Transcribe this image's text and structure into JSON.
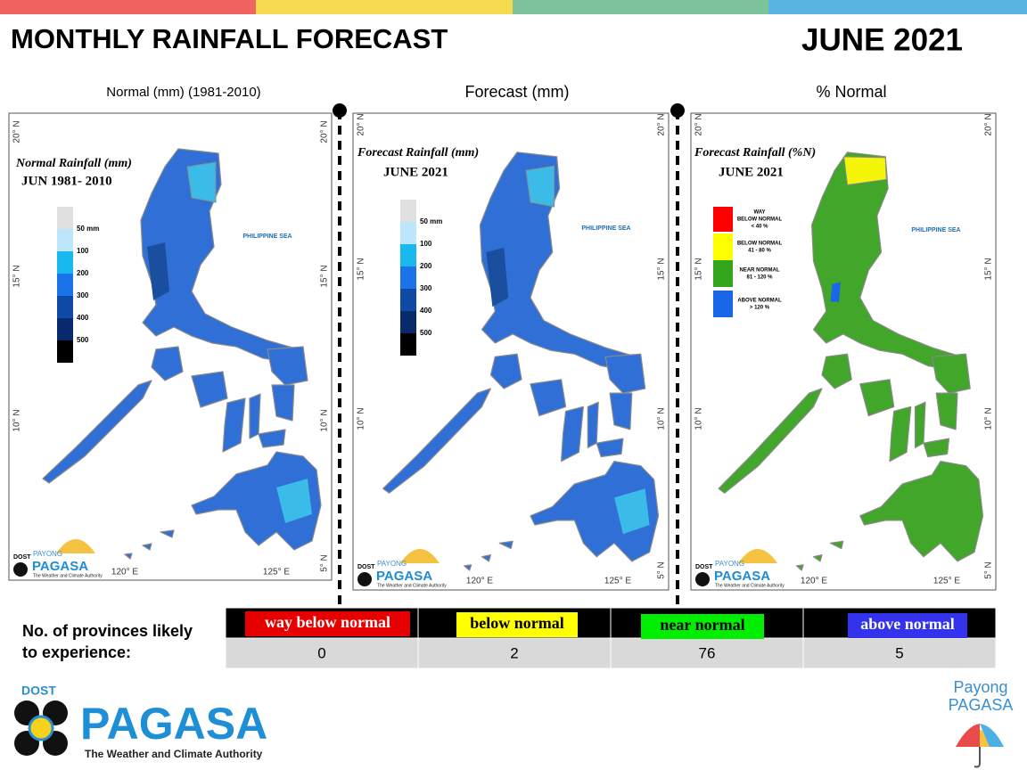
{
  "header": {
    "title": "MONTHLY RAINFALL FORECAST",
    "period": "JUNE 2021"
  },
  "map_grid": {
    "lat": [
      "20° N",
      "15° N",
      "10° N",
      "5° N"
    ],
    "lon": [
      "120° E",
      "125° E"
    ],
    "sea": "PHILIPPINE SEA"
  },
  "map_logo": {
    "agency": "DOST",
    "brand_top": "PAYONG",
    "brand": "PAGASA",
    "tagline": "The Weather and Climate Authority"
  },
  "panels": [
    {
      "caption": "Normal (mm) (1981-2010)",
      "map_title": "Normal Rainfall (mm)",
      "map_period": "JUN 1981- 2010",
      "legend": [
        "50 mm",
        "100",
        "200",
        "300",
        "400",
        "500"
      ]
    },
    {
      "caption": "Forecast (mm)",
      "map_title": "Forecast Rainfall (mm)",
      "map_period": "JUNE 2021",
      "legend": [
        "50 mm",
        "100",
        "200",
        "300",
        "400",
        "500"
      ]
    },
    {
      "caption": "% Normal",
      "map_title": "Forecast Rainfall (%N)",
      "map_period": "JUNE 2021",
      "legend": [
        [
          "WAY",
          "BELOW NORMAL",
          "< 40 %"
        ],
        [
          "BELOW NORMAL",
          "41 - 80 %"
        ],
        [
          "NEAR NORMAL",
          "81 - 120 %"
        ],
        [
          "ABOVE NORMAL",
          "> 120 %"
        ]
      ]
    }
  ],
  "table": {
    "row_label": [
      "No. of provinces likely",
      "to experience:"
    ],
    "columns": [
      "way below normal",
      "below normal",
      "near normal",
      "above normal"
    ],
    "counts": [
      0,
      2,
      76,
      5
    ]
  },
  "footer": {
    "agency": "DOST",
    "name": "PAGASA",
    "tagline": "The Weather and Climate Authority",
    "brand": [
      "Payong",
      "PAGASA"
    ]
  }
}
